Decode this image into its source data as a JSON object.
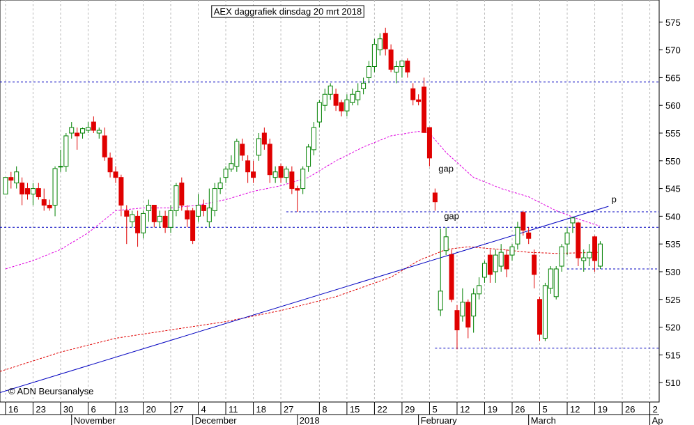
{
  "chart_data": {
    "type": "candlestick",
    "title": "AEX daggrafiek dinsdag 20 mrt 2018",
    "source": "© ADN Beursanalyse",
    "open": [
      544,
      547,
      546,
      546,
      545,
      544,
      545,
      543,
      542,
      542,
      549,
      549,
      555,
      555,
      555,
      555.5,
      557,
      555,
      554.5,
      550.5,
      548,
      547,
      541,
      539,
      540,
      537,
      541,
      542,
      539,
      540,
      538,
      541,
      546,
      541,
      541,
      540,
      542,
      539,
      541,
      545,
      547,
      548.5,
      549,
      553,
      550,
      548,
      551,
      555,
      553,
      547,
      549,
      547,
      548,
      545,
      545,
      549,
      552,
      557,
      560,
      562,
      562,
      560.5,
      559,
      560.5,
      561,
      563,
      565,
      567,
      570,
      573,
      570,
      566,
      567,
      568,
      563,
      561,
      563.3,
      556,
      544.2,
      523.1,
      533.8,
      533.1,
      523,
      522,
      524.5,
      522,
      526,
      529,
      533,
      530,
      531,
      533,
      533,
      535,
      540.7,
      537,
      533,
      525,
      518,
      527,
      525.5,
      531,
      535,
      538.8,
      538.8,
      532,
      532.5,
      536.3,
      531
    ],
    "high": [
      547,
      548,
      549,
      547,
      546,
      546,
      546,
      545,
      543,
      549,
      552,
      555,
      557,
      556,
      556,
      557,
      558,
      556,
      556,
      551.5,
      549,
      547.5,
      542,
      541,
      541,
      541,
      543,
      542,
      541,
      541,
      542,
      546,
      547,
      542,
      541.5,
      544,
      543,
      545,
      546,
      547,
      549,
      551,
      554,
      554,
      551,
      550,
      555,
      556,
      554,
      549,
      549.5,
      549,
      549,
      545.5,
      549,
      553,
      557,
      561,
      563,
      564,
      563,
      561,
      562,
      563,
      564,
      565,
      568,
      572,
      573,
      574,
      571,
      568,
      568,
      568.5,
      564,
      562,
      565,
      556,
      545,
      537.8,
      538,
      534,
      524,
      527,
      525,
      527,
      529,
      532,
      534,
      534,
      535,
      534,
      535,
      539,
      541,
      538,
      534,
      525.5,
      528,
      531,
      531,
      535,
      538,
      539.8,
      539,
      534,
      535,
      536.5,
      535.5
    ],
    "low": [
      544,
      545,
      545,
      542,
      543,
      542,
      543,
      541,
      541,
      540,
      548,
      548,
      554,
      552,
      554,
      555,
      555,
      554,
      550,
      547,
      546,
      540,
      535,
      538,
      534.5,
      536,
      539,
      538,
      538,
      537,
      537,
      540,
      541,
      538,
      535,
      539,
      540,
      538,
      540,
      544,
      546,
      548,
      548,
      550,
      546,
      546,
      550,
      552,
      546,
      546,
      546,
      546,
      544,
      540.8,
      544,
      548,
      551,
      556,
      559,
      561,
      559,
      558,
      558,
      560,
      560,
      562,
      564,
      566,
      569,
      569,
      566,
      564,
      565,
      565,
      560,
      560,
      555,
      549,
      541,
      522,
      533,
      524.5,
      516,
      521,
      518,
      519,
      525,
      528,
      528,
      528,
      530,
      529,
      532,
      534,
      536.5,
      535,
      527,
      517.5,
      517.5,
      526,
      525,
      530,
      533,
      537,
      531,
      530,
      531,
      530,
      530.5
    ],
    "close": [
      547,
      546.5,
      548,
      544,
      544,
      545,
      543.5,
      542,
      541.5,
      548.6,
      549,
      554.5,
      556,
      554.5,
      555.8,
      556,
      555.5,
      555.5,
      550.7,
      548,
      547,
      542,
      540,
      540.3,
      537,
      540.5,
      542,
      539,
      540,
      538,
      541,
      545.5,
      542,
      539.5,
      535.6,
      542,
      541,
      541.5,
      545,
      546,
      548.5,
      549.5,
      553.5,
      551,
      548,
      547,
      554,
      553,
      547.5,
      548,
      547,
      548.5,
      545,
      544.7,
      548.5,
      552.5,
      556,
      560.5,
      562,
      563.5,
      560,
      559,
      561,
      562,
      562.5,
      564,
      567,
      571,
      572,
      570.2,
      566.5,
      567,
      568,
      566,
      561,
      560.7,
      555.1,
      550.5,
      542.6,
      526.5,
      536.3,
      525,
      519.5,
      524.5,
      520,
      526,
      527.5,
      531.5,
      529.5,
      533,
      533.5,
      530.5,
      534.5,
      538,
      537.5,
      536,
      529.5,
      518.7,
      527.5,
      530.5,
      530.5,
      534.5,
      537,
      539.7,
      532.5,
      532.5,
      533.5,
      532,
      535
    ],
    "up_color": "#ffffff",
    "down_color": "#e00000",
    "wick_color": "#008000",
    "xlim": [
      -1,
      118.7
    ],
    "xticks": [
      {
        "value": 0,
        "label": "16"
      },
      {
        "value": 5,
        "label": "23"
      },
      {
        "value": 10,
        "label": "30"
      },
      {
        "value": 15,
        "label": "6"
      },
      {
        "value": 20,
        "label": "13"
      },
      {
        "value": 25,
        "label": "20"
      },
      {
        "value": 30,
        "label": "27"
      },
      {
        "value": 35,
        "label": "4"
      },
      {
        "value": 40,
        "label": "11"
      },
      {
        "value": 45,
        "label": "18"
      },
      {
        "value": 50,
        "label": "27"
      },
      {
        "value": 57,
        "label": "8"
      },
      {
        "value": 62,
        "label": "15"
      },
      {
        "value": 67,
        "label": "22"
      },
      {
        "value": 72,
        "label": "29"
      },
      {
        "value": 77,
        "label": "5"
      },
      {
        "value": 82,
        "label": "12"
      },
      {
        "value": 87,
        "label": "19"
      },
      {
        "value": 92,
        "label": "26"
      },
      {
        "value": 97,
        "label": "5"
      },
      {
        "value": 102,
        "label": "12"
      },
      {
        "value": 107,
        "label": "19"
      },
      {
        "value": 112,
        "label": "26"
      },
      {
        "value": 117,
        "label": "2"
      }
    ],
    "months": [
      {
        "value": 12,
        "label": "November"
      },
      {
        "value": 34,
        "label": "December"
      },
      {
        "value": 53,
        "label": "2018"
      },
      {
        "value": 75,
        "label": "February"
      },
      {
        "value": 95,
        "label": "March"
      },
      {
        "value": 117,
        "label": "Ap"
      }
    ],
    "ylim": [
      506.5,
      579
    ],
    "yticks": [
      510,
      515,
      520,
      525,
      530,
      535,
      540,
      545,
      550,
      555,
      560,
      565,
      570,
      575
    ],
    "lines": [
      {
        "color": "#e000e0",
        "style": "dashed",
        "x": [
          0,
          5,
          10,
          15,
          20,
          25,
          30,
          35,
          40,
          45,
          50,
          55,
          60,
          65,
          70,
          75,
          77,
          80,
          85,
          90,
          95,
          100,
          104,
          108
        ],
        "values": [
          530.5,
          532,
          534,
          537,
          541,
          541.5,
          541.5,
          542,
          543,
          544.5,
          545.5,
          547,
          550,
          552.5,
          554.5,
          555.3,
          555,
          551.5,
          547,
          545,
          543.5,
          541,
          539.5,
          538.2
        ]
      },
      {
        "color": "#e00000",
        "style": "dashed",
        "x": [
          -1,
          10,
          20,
          30,
          40,
          50,
          60,
          70,
          75,
          80,
          84,
          90,
          95,
          100,
          108
        ],
        "values": [
          512,
          515.5,
          518,
          519.5,
          521,
          523,
          525.5,
          529,
          532,
          534,
          534.5,
          534,
          533.5,
          533.3,
          533.5
        ]
      },
      {
        "color": "#0000c0",
        "style": "solid",
        "x": [
          -1,
          109.5
        ],
        "values": [
          508.2,
          541.8
        ]
      }
    ],
    "hlines": [
      {
        "color": "#0000c0",
        "value": 564.2,
        "x": [
          -1,
          118.7
        ]
      },
      {
        "color": "#0000c0",
        "value": 538,
        "x": [
          -1,
          118.7
        ]
      },
      {
        "color": "#0000c0",
        "value": 540.8,
        "x": [
          51,
          118.7
        ]
      },
      {
        "color": "#0000c0",
        "value": 530.5,
        "x": [
          102,
          118.7
        ]
      },
      {
        "color": "#0000c0",
        "value": 516.2,
        "x": [
          78,
          118.7
        ]
      }
    ],
    "annotations": [
      {
        "text": "gap",
        "x": 80,
        "y": 548,
        "color": "#000000"
      },
      {
        "text": "gap",
        "x": 81,
        "y": 539.5,
        "color": "#b0b0b0"
      },
      {
        "text": "p",
        "x": 110.5,
        "y": 542.5,
        "color": "#0000c0"
      }
    ]
  }
}
